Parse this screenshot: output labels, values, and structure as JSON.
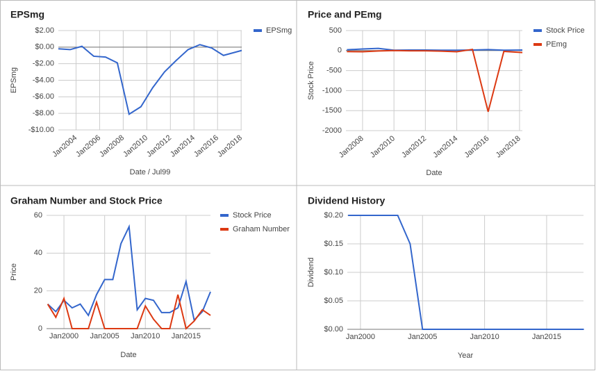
{
  "chart_data": [
    {
      "type": "line",
      "title": "EPSmg",
      "xlabel": "Date / Jul99",
      "ylabel": "EPSmg",
      "grid": true,
      "legend": "right",
      "x": [
        2002.5,
        2003.5,
        2004.5,
        2005.5,
        2006.5,
        2007.5,
        2008.5,
        2009.5,
        2010.5,
        2011.5,
        2012.5,
        2013.5,
        2014.5,
        2015.5,
        2016.5,
        2018.05
      ],
      "series": [
        {
          "name": "EPSmg",
          "color": "#3366cc",
          "values": [
            -0.2,
            -0.3,
            0.1,
            -1.1,
            -1.2,
            -1.9,
            -8.1,
            -7.2,
            -4.9,
            -3.0,
            -1.6,
            -0.3,
            0.3,
            -0.1,
            -1.0,
            -0.4
          ]
        }
      ],
      "xlim": [
        2002.5,
        2018.05
      ],
      "xticks": [
        {
          "value": 2004,
          "label": "Jan2004"
        },
        {
          "value": 2006,
          "label": "Jan2006"
        },
        {
          "value": 2008,
          "label": "Jan2008"
        },
        {
          "value": 2010,
          "label": "Jan2010"
        },
        {
          "value": 2012,
          "label": "Jan2012"
        },
        {
          "value": 2014,
          "label": "Jan2014"
        },
        {
          "value": 2016,
          "label": "Jan2016"
        },
        {
          "value": 2018,
          "label": "Jan2018"
        }
      ],
      "ylim": [
        -10,
        2
      ],
      "yticks": [
        {
          "value": 2,
          "label": "$2.00"
        },
        {
          "value": 0,
          "label": "$0.00"
        },
        {
          "value": -2,
          "label": "-$2.00"
        },
        {
          "value": -4,
          "label": "-$4.00"
        },
        {
          "value": -6,
          "label": "-$6.00"
        },
        {
          "value": -8,
          "label": "-$8.00"
        },
        {
          "value": -10,
          "label": "-$10.00"
        }
      ]
    },
    {
      "type": "line",
      "title": "Price and PEmg",
      "xlabel": "Date",
      "ylabel": "Stock Price",
      "grid": true,
      "legend": "right",
      "x": [
        2007,
        2008,
        2009,
        2010,
        2011,
        2012,
        2013,
        2014,
        2015,
        2016,
        2017,
        2018.18
      ],
      "series": [
        {
          "name": "Stock Price",
          "color": "#3366cc",
          "values": [
            20,
            40,
            55,
            10,
            15,
            15,
            10,
            10,
            15,
            25,
            10,
            15
          ]
        },
        {
          "name": "PEmg",
          "color": "#dc3912",
          "values": [
            -25,
            -30,
            -10,
            0,
            -5,
            -5,
            -15,
            -30,
            30,
            -1530,
            -20,
            -50
          ]
        }
      ],
      "xlim": [
        2006.94,
        2018.18
      ],
      "xticks": [
        {
          "value": 2008,
          "label": "Jan2008"
        },
        {
          "value": 2010,
          "label": "Jan2010"
        },
        {
          "value": 2012,
          "label": "Jan2012"
        },
        {
          "value": 2014,
          "label": "Jan2014"
        },
        {
          "value": 2016,
          "label": "Jan2016"
        },
        {
          "value": 2018,
          "label": "Jan2018"
        }
      ],
      "ylim": [
        -2000,
        500
      ],
      "yticks": [
        500,
        0,
        -500,
        -1000,
        -1500,
        -2000
      ]
    },
    {
      "type": "line",
      "title": "Graham Number and Stock Price",
      "xlabel": "Date",
      "ylabel": "Price",
      "grid": true,
      "legend": "right",
      "x": [
        1998,
        1999,
        2000,
        2001,
        2002,
        2003,
        2004,
        2005,
        2006,
        2007,
        2008,
        2009,
        2010,
        2011,
        2012,
        2013,
        2014,
        2015,
        2016,
        2017,
        2018
      ],
      "series": [
        {
          "name": "Stock Price",
          "color": "#3366cc",
          "values": [
            13,
            9,
            15,
            11,
            13,
            7,
            18,
            26,
            26,
            45,
            54,
            10,
            16,
            15,
            8.5,
            8.5,
            11,
            25,
            4.5,
            9,
            19.5
          ]
        },
        {
          "name": "Graham Number",
          "color": "#dc3912",
          "values": [
            13,
            6,
            16,
            0,
            0,
            0,
            14,
            0,
            0,
            0,
            0,
            0,
            12,
            5,
            0,
            0,
            18,
            0,
            4,
            10,
            7
          ]
        }
      ],
      "xlim": [
        1997.86,
        2018
      ],
      "xticks": [
        {
          "value": 2000,
          "label": "Jan2000"
        },
        {
          "value": 2005,
          "label": "Jan2005"
        },
        {
          "value": 2010,
          "label": "Jan2010"
        },
        {
          "value": 2015,
          "label": "Jan2015"
        }
      ],
      "ylim": [
        0,
        60
      ],
      "yticks": [
        0,
        20,
        40,
        60
      ]
    },
    {
      "type": "line",
      "title": "Dividend History",
      "xlabel": "Year",
      "ylabel": "Dividend",
      "grid": true,
      "x": [
        1999,
        2000,
        2001,
        2002,
        2003,
        2004,
        2005,
        2006,
        2007,
        2008,
        2009,
        2010,
        2011,
        2012,
        2013,
        2014,
        2015,
        2016,
        2017,
        2018
      ],
      "series": [
        {
          "color": "#3366cc",
          "values": [
            0.2,
            0.2,
            0.2,
            0.2,
            0.2,
            0.15,
            0,
            0,
            0,
            0,
            0,
            0,
            0,
            0,
            0,
            0,
            0,
            0,
            0,
            0
          ]
        }
      ],
      "xlim": [
        1998.94,
        2017.97
      ],
      "xticks": [
        {
          "value": 2000,
          "label": "Jan2000"
        },
        {
          "value": 2005,
          "label": "Jan2005"
        },
        {
          "value": 2010,
          "label": "Jan2010"
        },
        {
          "value": 2015,
          "label": "Jan2015"
        }
      ],
      "ylim": [
        0,
        0.2
      ],
      "yticks": [
        {
          "value": 0,
          "label": "$0.00"
        },
        {
          "value": 0.05,
          "label": "$0.05"
        },
        {
          "value": 0.1,
          "label": "$0.10"
        },
        {
          "value": 0.15,
          "label": "$0.15"
        },
        {
          "value": 0.2,
          "label": "$0.20"
        }
      ]
    }
  ]
}
